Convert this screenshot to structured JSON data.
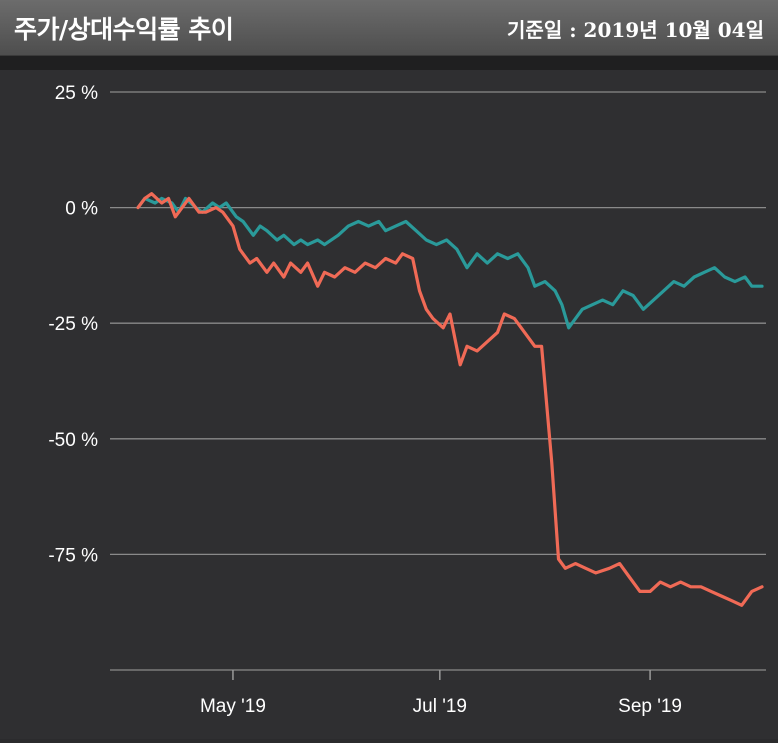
{
  "header": {
    "title": "주가/상대수익률 추이",
    "as_of": "기준일 : 2019년 10월 04일"
  },
  "chart_data": {
    "type": "line",
    "title": "",
    "xlabel": "",
    "ylabel": "",
    "ylim": [
      -100,
      25
    ],
    "y_ticks": [
      25,
      0,
      -25,
      -50,
      -75,
      -100
    ],
    "y_tick_labels": [
      "25 %",
      "0 %",
      "-25 %",
      "-50 %",
      "-75 %",
      ""
    ],
    "xlim": [
      "2019-04-03",
      "2019-10-04"
    ],
    "x_ticks": [
      "2019-05-01",
      "2019-07-01",
      "2019-09-01"
    ],
    "x_tick_labels": [
      "May '19",
      "Jul '19",
      "Sep '19"
    ],
    "grid": "horizontal",
    "legend": "none",
    "series": [
      {
        "color": "#2a9a9a",
        "points": [
          [
            "2019-04-03",
            0
          ],
          [
            "2019-04-05",
            2
          ],
          [
            "2019-04-08",
            1
          ],
          [
            "2019-04-10",
            2
          ],
          [
            "2019-04-13",
            1
          ],
          [
            "2019-04-15",
            -1
          ],
          [
            "2019-04-17",
            2
          ],
          [
            "2019-04-20",
            0
          ],
          [
            "2019-04-22",
            -1
          ],
          [
            "2019-04-25",
            1
          ],
          [
            "2019-04-27",
            0
          ],
          [
            "2019-04-29",
            1
          ],
          [
            "2019-05-02",
            -2
          ],
          [
            "2019-05-04",
            -3
          ],
          [
            "2019-05-07",
            -6
          ],
          [
            "2019-05-09",
            -4
          ],
          [
            "2019-05-11",
            -5
          ],
          [
            "2019-05-14",
            -7
          ],
          [
            "2019-05-16",
            -6
          ],
          [
            "2019-05-19",
            -8
          ],
          [
            "2019-05-21",
            -7
          ],
          [
            "2019-05-23",
            -8
          ],
          [
            "2019-05-26",
            -7
          ],
          [
            "2019-05-28",
            -8
          ],
          [
            "2019-06-01",
            -6
          ],
          [
            "2019-06-04",
            -4
          ],
          [
            "2019-06-07",
            -3
          ],
          [
            "2019-06-10",
            -4
          ],
          [
            "2019-06-13",
            -3
          ],
          [
            "2019-06-15",
            -5
          ],
          [
            "2019-06-18",
            -4
          ],
          [
            "2019-06-21",
            -3
          ],
          [
            "2019-06-24",
            -5
          ],
          [
            "2019-06-27",
            -7
          ],
          [
            "2019-06-30",
            -8
          ],
          [
            "2019-07-03",
            -7
          ],
          [
            "2019-07-06",
            -9
          ],
          [
            "2019-07-09",
            -13
          ],
          [
            "2019-07-12",
            -10
          ],
          [
            "2019-07-15",
            -12
          ],
          [
            "2019-07-18",
            -10
          ],
          [
            "2019-07-21",
            -11
          ],
          [
            "2019-07-24",
            -10
          ],
          [
            "2019-07-27",
            -13
          ],
          [
            "2019-07-29",
            -17
          ],
          [
            "2019-08-01",
            -16
          ],
          [
            "2019-08-04",
            -18
          ],
          [
            "2019-08-06",
            -21
          ],
          [
            "2019-08-08",
            -26
          ],
          [
            "2019-08-10",
            -24
          ],
          [
            "2019-08-12",
            -22
          ],
          [
            "2019-08-15",
            -21
          ],
          [
            "2019-08-18",
            -20
          ],
          [
            "2019-08-21",
            -21
          ],
          [
            "2019-08-24",
            -18
          ],
          [
            "2019-08-27",
            -19
          ],
          [
            "2019-08-30",
            -22
          ],
          [
            "2019-09-02",
            -20
          ],
          [
            "2019-09-05",
            -18
          ],
          [
            "2019-09-08",
            -16
          ],
          [
            "2019-09-11",
            -17
          ],
          [
            "2019-09-14",
            -15
          ],
          [
            "2019-09-17",
            -14
          ],
          [
            "2019-09-20",
            -13
          ],
          [
            "2019-09-23",
            -15
          ],
          [
            "2019-09-26",
            -16
          ],
          [
            "2019-09-29",
            -15
          ],
          [
            "2019-10-01",
            -17
          ],
          [
            "2019-10-04",
            -17
          ]
        ]
      },
      {
        "color": "#f06a56",
        "points": [
          [
            "2019-04-03",
            0
          ],
          [
            "2019-04-05",
            2
          ],
          [
            "2019-04-07",
            3
          ],
          [
            "2019-04-10",
            1
          ],
          [
            "2019-04-12",
            2
          ],
          [
            "2019-04-14",
            -2
          ],
          [
            "2019-04-16",
            0
          ],
          [
            "2019-04-18",
            2
          ],
          [
            "2019-04-21",
            -1
          ],
          [
            "2019-04-23",
            -1
          ],
          [
            "2019-04-26",
            0
          ],
          [
            "2019-04-28",
            -1
          ],
          [
            "2019-05-01",
            -4
          ],
          [
            "2019-05-03",
            -9
          ],
          [
            "2019-05-06",
            -12
          ],
          [
            "2019-05-08",
            -11
          ],
          [
            "2019-05-11",
            -14
          ],
          [
            "2019-05-13",
            -12
          ],
          [
            "2019-05-16",
            -15
          ],
          [
            "2019-05-18",
            -12
          ],
          [
            "2019-05-21",
            -14
          ],
          [
            "2019-05-23",
            -12
          ],
          [
            "2019-05-26",
            -17
          ],
          [
            "2019-05-28",
            -14
          ],
          [
            "2019-05-31",
            -15
          ],
          [
            "2019-06-03",
            -13
          ],
          [
            "2019-06-06",
            -14
          ],
          [
            "2019-06-09",
            -12
          ],
          [
            "2019-06-12",
            -13
          ],
          [
            "2019-06-15",
            -11
          ],
          [
            "2019-06-18",
            -12
          ],
          [
            "2019-06-20",
            -10
          ],
          [
            "2019-06-23",
            -11
          ],
          [
            "2019-06-25",
            -18
          ],
          [
            "2019-06-27",
            -22
          ],
          [
            "2019-06-29",
            -24
          ],
          [
            "2019-07-02",
            -26
          ],
          [
            "2019-07-04",
            -23
          ],
          [
            "2019-07-07",
            -34
          ],
          [
            "2019-07-09",
            -30
          ],
          [
            "2019-07-12",
            -31
          ],
          [
            "2019-07-15",
            -29
          ],
          [
            "2019-07-18",
            -27
          ],
          [
            "2019-07-20",
            -23
          ],
          [
            "2019-07-23",
            -24
          ],
          [
            "2019-07-26",
            -27
          ],
          [
            "2019-07-29",
            -30
          ],
          [
            "2019-07-31",
            -30
          ],
          [
            "2019-08-03",
            -55
          ],
          [
            "2019-08-05",
            -76
          ],
          [
            "2019-08-07",
            -78
          ],
          [
            "2019-08-10",
            -77
          ],
          [
            "2019-08-13",
            -78
          ],
          [
            "2019-08-16",
            -79
          ],
          [
            "2019-08-20",
            -78
          ],
          [
            "2019-08-23",
            -77
          ],
          [
            "2019-08-26",
            -80
          ],
          [
            "2019-08-29",
            -83
          ],
          [
            "2019-09-01",
            -83
          ],
          [
            "2019-09-04",
            -81
          ],
          [
            "2019-09-07",
            -82
          ],
          [
            "2019-09-10",
            -81
          ],
          [
            "2019-09-13",
            -82
          ],
          [
            "2019-09-16",
            -82
          ],
          [
            "2019-09-19",
            -83
          ],
          [
            "2019-09-22",
            -84
          ],
          [
            "2019-09-25",
            -85
          ],
          [
            "2019-09-28",
            -86
          ],
          [
            "2019-10-01",
            -83
          ],
          [
            "2019-10-04",
            -82
          ]
        ]
      }
    ]
  }
}
